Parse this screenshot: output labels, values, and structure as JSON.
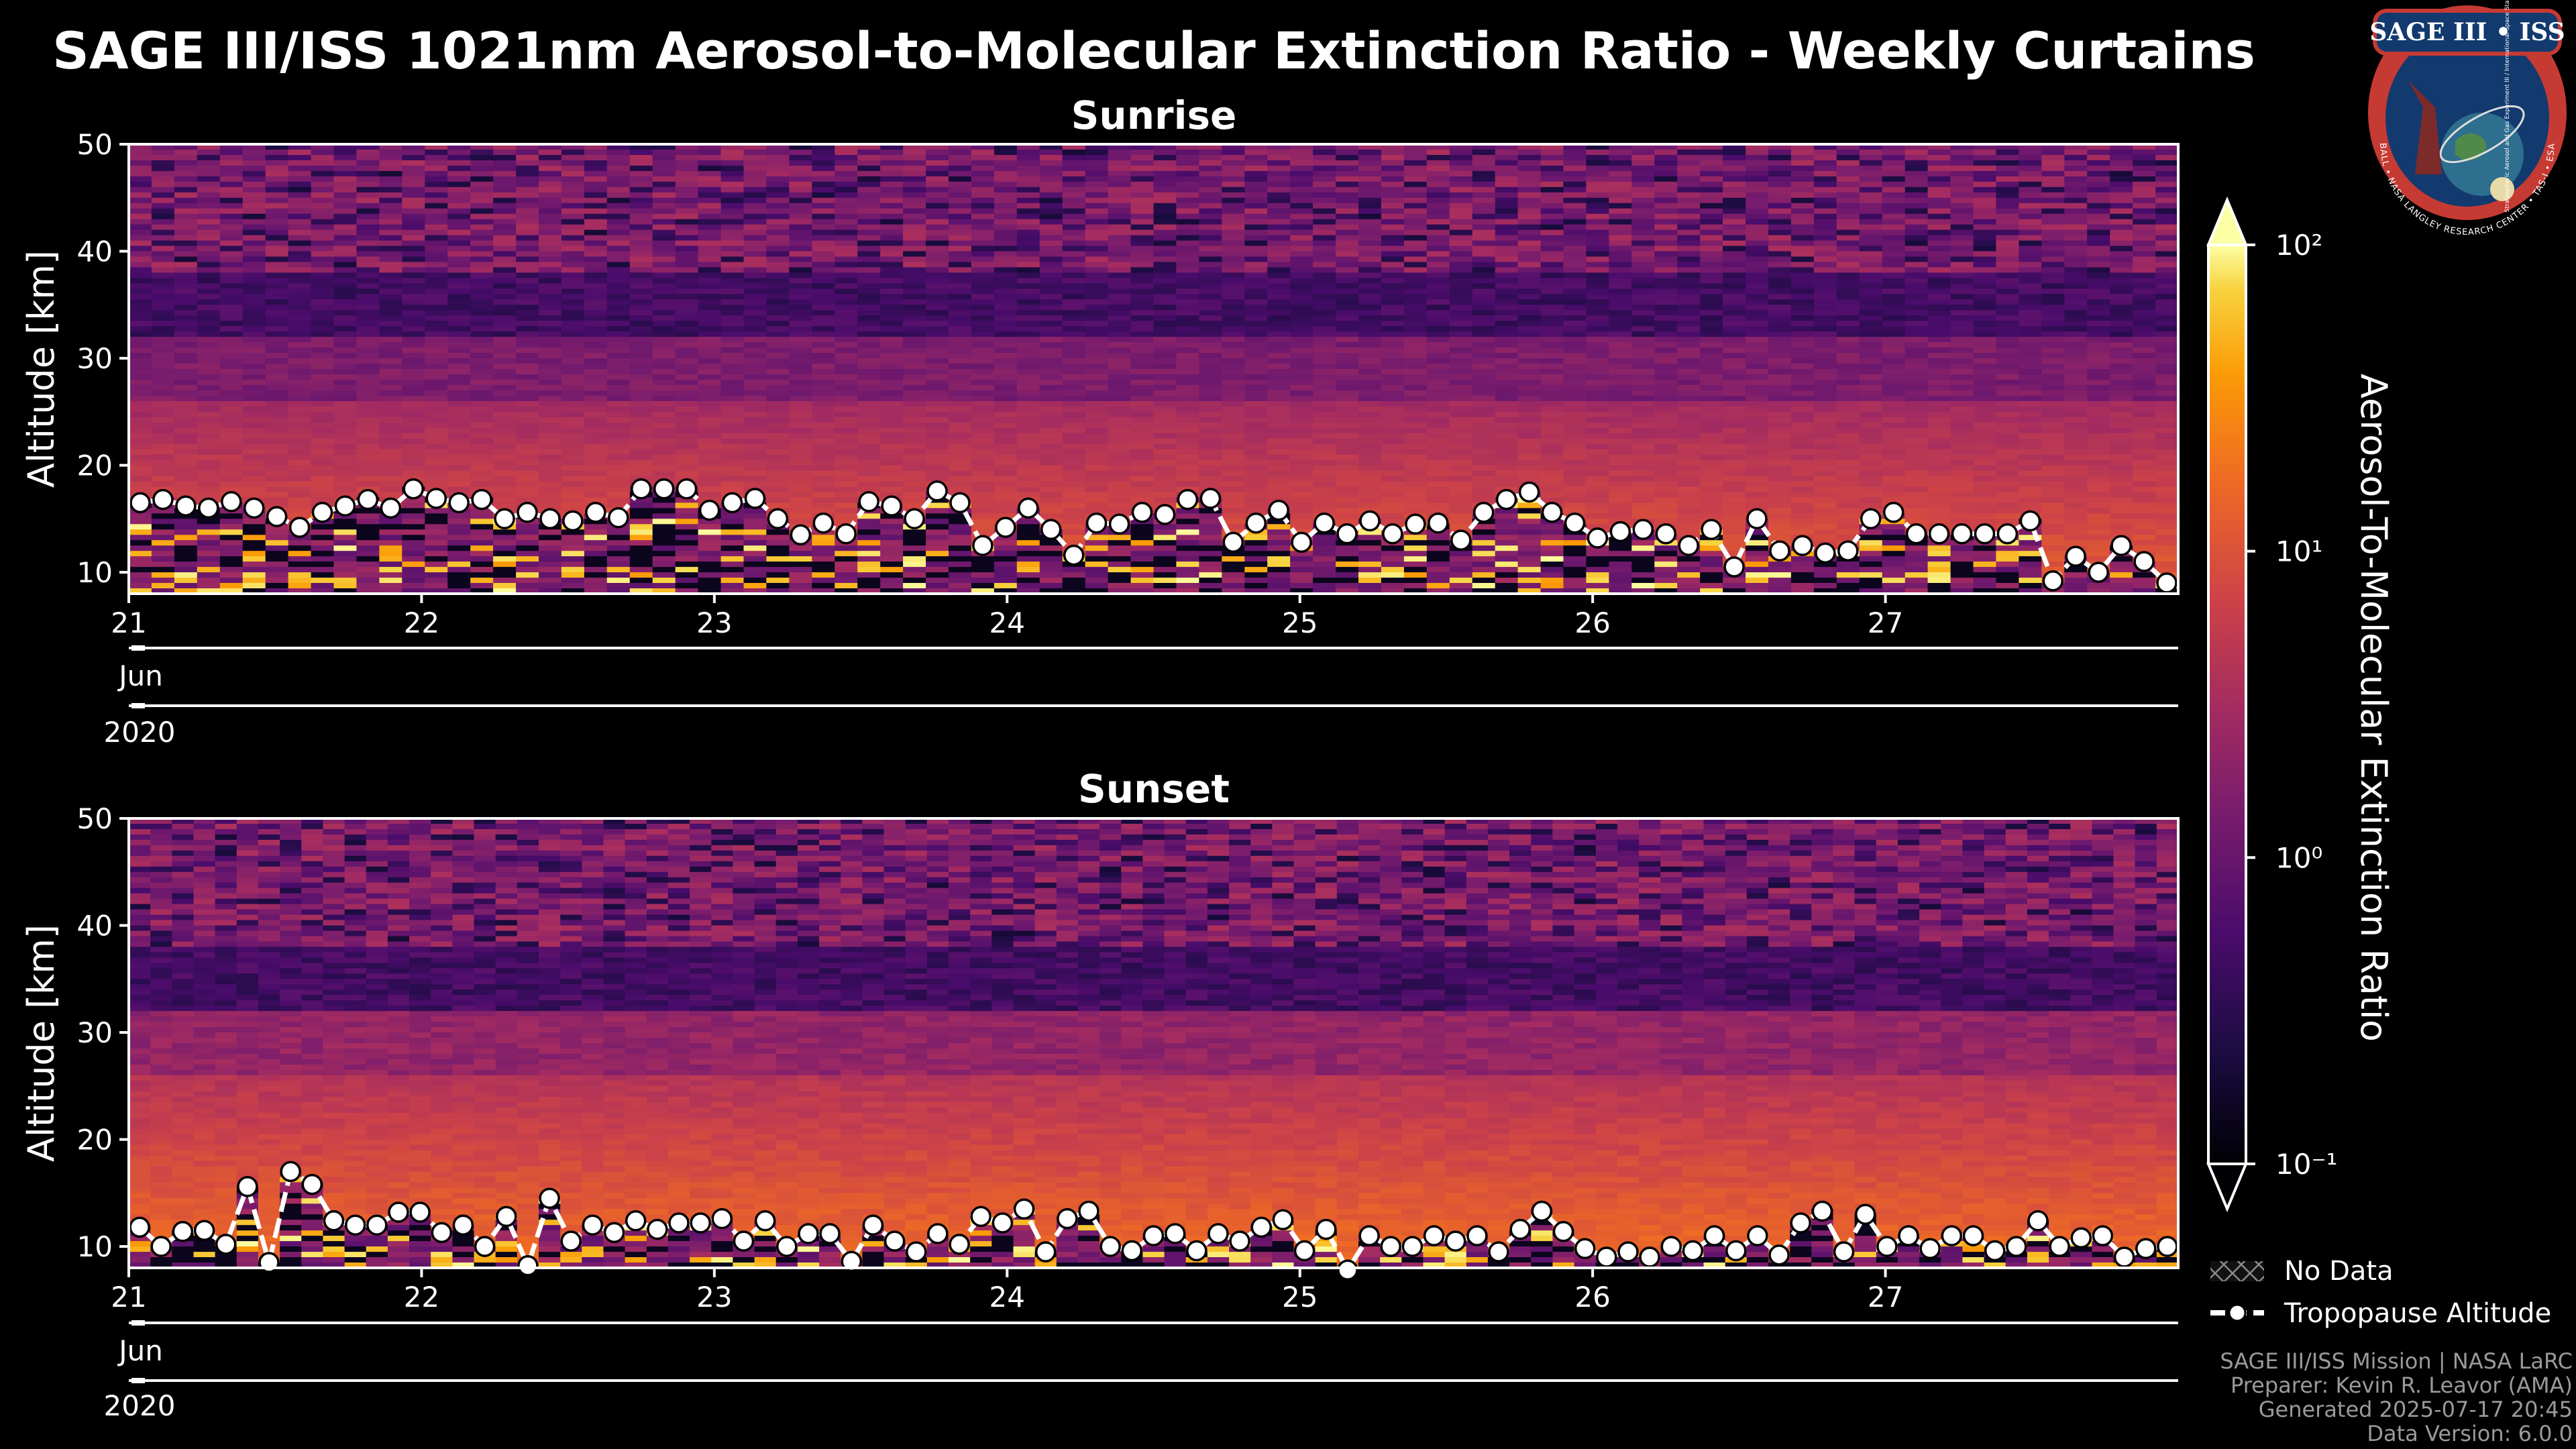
{
  "title": "SAGE III/ISS 1021nm Aerosol-to-Molecular Extinction Ratio - Weekly Curtains",
  "logo": {
    "text": "SAGE III • ISS",
    "ring_text": "BALL • NASA LANGLEY RESEARCH CENTER • TAS-I • ESA",
    "side_text": "Stratospheric Aerosol and Gas Experiment III / International Space Station"
  },
  "chart_data": [
    {
      "type": "heatmap",
      "title": "Sunrise",
      "ylabel": "Altitude [km]",
      "ylim": [
        8,
        50
      ],
      "yticks": [
        10,
        20,
        30,
        40,
        50
      ],
      "xlim": [
        21.0,
        28.0
      ],
      "xticks": [
        21,
        22,
        23,
        24,
        25,
        26,
        27
      ],
      "xticklabels": [
        "21",
        "22",
        "23",
        "24",
        "25",
        "26",
        "27"
      ],
      "month_label": "Jun",
      "year_label": "2020",
      "tropopause_km": [
        16.5,
        16.8,
        16.2,
        16.0,
        16.6,
        16.0,
        15.2,
        14.2,
        15.6,
        16.2,
        16.8,
        16.0,
        17.8,
        16.9,
        16.5,
        16.8,
        15.0,
        15.6,
        15.0,
        14.8,
        15.6,
        15.1,
        17.8,
        17.8,
        17.8,
        15.8,
        16.5,
        16.9,
        15.0,
        13.5,
        14.6,
        13.6,
        16.6,
        16.2,
        15.0,
        17.6,
        16.5,
        12.5,
        14.2,
        16.0,
        14.0,
        11.6,
        14.6,
        14.5,
        15.6,
        15.4,
        16.8,
        16.9,
        12.8,
        14.6,
        15.8,
        12.8,
        14.6,
        13.6,
        14.8,
        13.6,
        14.5,
        14.6,
        13.0,
        15.6,
        16.8,
        17.5,
        15.6,
        14.6,
        13.2,
        13.8,
        14.0,
        13.6,
        12.5,
        14.0,
        10.5,
        15.0,
        12.0,
        12.5,
        11.8,
        12.0,
        15.0,
        15.6,
        13.6,
        13.6,
        13.6,
        13.6,
        13.6,
        14.8,
        9.2,
        11.5,
        10.0,
        12.5,
        11.0,
        9.0
      ],
      "colorbar": {
        "label": "Aerosol-To-Molecular Extinction Ratio",
        "scale": "log",
        "min": 0.1,
        "max": 100,
        "ticks": [
          "10⁻¹",
          "10⁰",
          "10¹",
          "10²"
        ]
      }
    },
    {
      "type": "heatmap",
      "title": "Sunset",
      "ylabel": "Altitude [km]",
      "ylim": [
        8,
        50
      ],
      "yticks": [
        10,
        20,
        30,
        40,
        50
      ],
      "xlim": [
        21.0,
        28.0
      ],
      "xticks": [
        21,
        22,
        23,
        24,
        25,
        26,
        27
      ],
      "xticklabels": [
        "21",
        "22",
        "23",
        "24",
        "25",
        "26",
        "27"
      ],
      "month_label": "Jun",
      "year_label": "2020",
      "tropopause_km": [
        11.8,
        10.0,
        11.4,
        11.5,
        10.2,
        15.6,
        8.5,
        17.0,
        15.8,
        12.4,
        12.0,
        12.0,
        13.2,
        13.2,
        11.3,
        12.0,
        10.0,
        12.8,
        8.2,
        14.5,
        10.5,
        12.0,
        11.3,
        12.4,
        11.6,
        12.2,
        12.2,
        12.6,
        10.5,
        12.4,
        10.0,
        11.2,
        11.2,
        8.6,
        12.0,
        10.5,
        9.5,
        11.2,
        10.2,
        12.8,
        12.2,
        13.5,
        9.5,
        12.6,
        13.3,
        10.0,
        9.6,
        11.0,
        11.2,
        9.6,
        11.2,
        10.5,
        11.8,
        12.5,
        9.6,
        11.6,
        7.8,
        11.0,
        10.0,
        10.0,
        11.0,
        10.5,
        11.0,
        9.5,
        11.6,
        13.3,
        11.4,
        9.8,
        9.0,
        9.5,
        9.0,
        10.0,
        9.6,
        11.0,
        9.6,
        11.0,
        9.2,
        12.2,
        13.3,
        9.5,
        13.0,
        10.0,
        11.0,
        9.8,
        11.0,
        11.0,
        9.6,
        10.0,
        12.4,
        10.0,
        10.8,
        11.0,
        9.0,
        9.8,
        10.0
      ]
    }
  ],
  "legend": {
    "no_data": "No Data",
    "tropopause": "Tropopause Altitude"
  },
  "footer": {
    "line1": "SAGE III/ISS Mission | NASA LaRC",
    "line2": "Preparer: Kevin R. Leavor (AMA)",
    "line3": "Generated 2025-07-17 20:45",
    "line4": "Data Version: 6.0.0"
  },
  "colors": {
    "background": "#000000",
    "axis": "#ffffff",
    "marker": "#ffffff"
  }
}
